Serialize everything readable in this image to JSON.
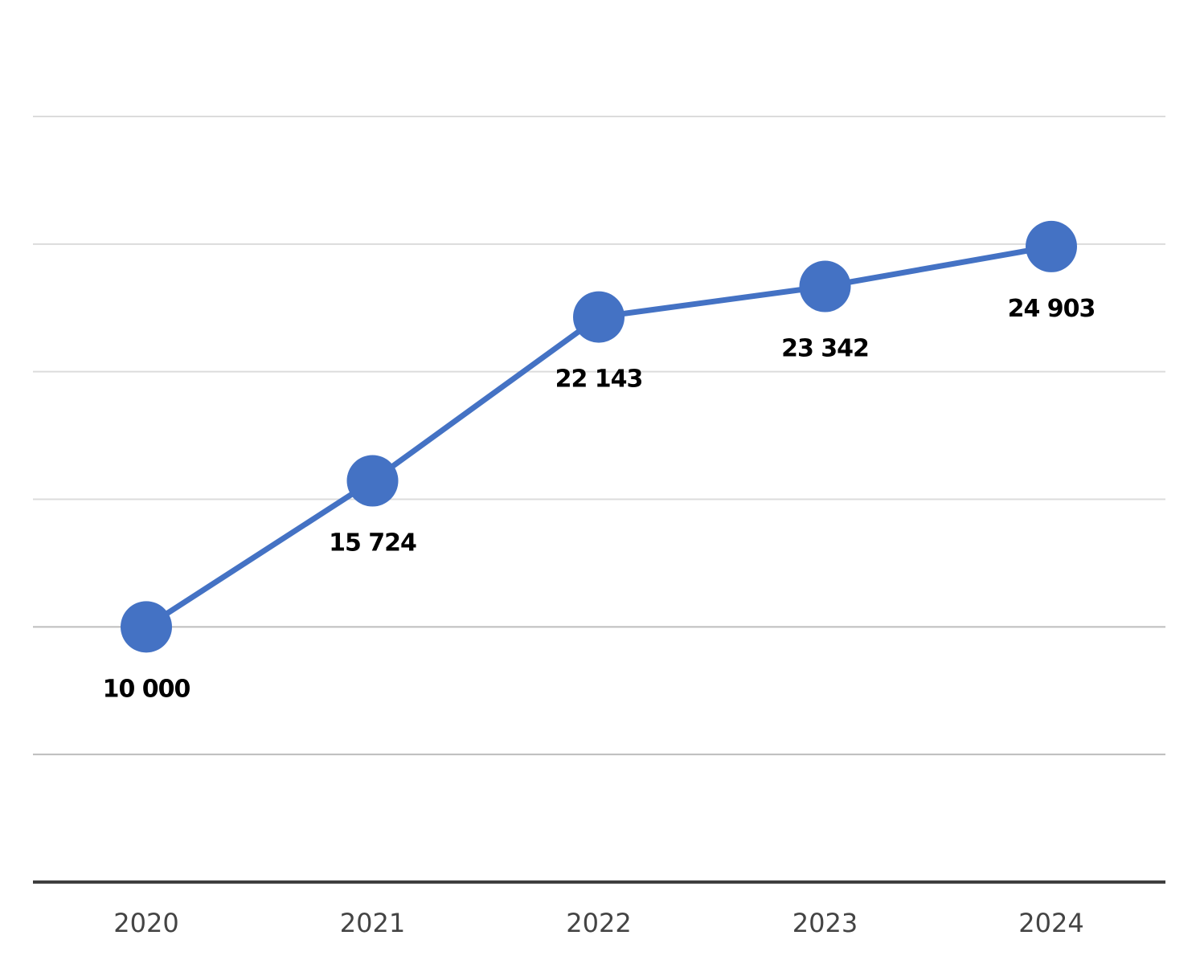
{
  "colors": {
    "series": "#4472c4",
    "grid": "#dcdcdc",
    "baseline": "#3f3f3f"
  },
  "chart_data": {
    "type": "line",
    "title": "",
    "xlabel": "",
    "ylabel": "",
    "categories": [
      "2020",
      "2021",
      "2022",
      "2023",
      "2024"
    ],
    "series": [
      {
        "values": [
          10000,
          15724,
          22143,
          23342,
          24903
        ],
        "labels": [
          "10 000",
          "15 724",
          "22 143",
          "23 342",
          "24 903"
        ],
        "color": "#4472c4"
      }
    ],
    "ylim": [
      0,
      30000
    ],
    "y_gridlines": [
      5000,
      10000,
      15000,
      20000,
      25000,
      30000
    ],
    "y_axis_labels_shown": false,
    "grid": true,
    "legend": "none"
  }
}
